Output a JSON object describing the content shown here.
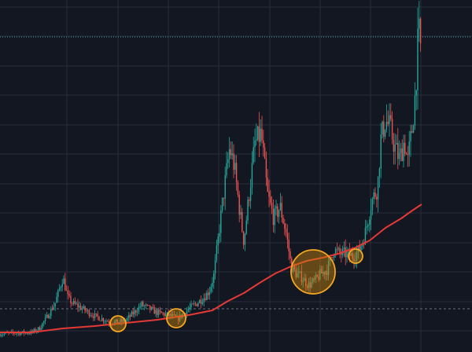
{
  "colors": {
    "background": "#131722",
    "grid": "#2a2e39",
    "candle_up": "#26a69a",
    "candle_down": "#ef5350",
    "moving_average": "#e53935",
    "highlight_fill": "#c8860a",
    "highlight_stroke": "#f5a623",
    "top_dotted": "#4db6c6",
    "bottom_dashed": "#6b7080"
  },
  "chart_data": {
    "type": "candlestick",
    "title": "",
    "xlabel": "",
    "ylabel": "",
    "xlim": [
      0,
      300
    ],
    "ylim": [
      0,
      448
    ],
    "grid": true,
    "legend": "none",
    "top_dotted_level": 401,
    "bottom_dashed_level": 55,
    "price_path": [
      [
        0,
        23
      ],
      [
        10,
        24
      ],
      [
        20,
        25
      ],
      [
        25,
        30
      ],
      [
        30,
        45
      ],
      [
        35,
        62
      ],
      [
        40,
        95
      ],
      [
        43,
        70
      ],
      [
        46,
        62
      ],
      [
        50,
        58
      ],
      [
        55,
        52
      ],
      [
        60,
        46
      ],
      [
        65,
        42
      ],
      [
        70,
        38
      ],
      [
        75,
        38
      ],
      [
        80,
        40
      ],
      [
        85,
        50
      ],
      [
        90,
        60
      ],
      [
        95,
        55
      ],
      [
        100,
        50
      ],
      [
        105,
        48
      ],
      [
        110,
        45
      ],
      [
        113,
        42
      ],
      [
        116,
        48
      ],
      [
        120,
        55
      ],
      [
        125,
        62
      ],
      [
        130,
        70
      ],
      [
        133,
        78
      ],
      [
        136,
        98
      ],
      [
        139,
        150
      ],
      [
        142,
        200
      ],
      [
        146,
        260
      ],
      [
        149,
        235
      ],
      [
        152,
        185
      ],
      [
        155,
        140
      ],
      [
        158,
        195
      ],
      [
        162,
        265
      ],
      [
        166,
        278
      ],
      [
        170,
        200
      ],
      [
        174,
        170
      ],
      [
        178,
        185
      ],
      [
        182,
        150
      ],
      [
        185,
        110
      ],
      [
        188,
        100
      ],
      [
        192,
        95
      ],
      [
        196,
        85
      ],
      [
        200,
        90
      ],
      [
        204,
        100
      ],
      [
        208,
        105
      ],
      [
        212,
        130
      ],
      [
        216,
        125
      ],
      [
        220,
        125
      ],
      [
        224,
        122
      ],
      [
        228,
        128
      ],
      [
        232,
        150
      ],
      [
        236,
        190
      ],
      [
        240,
        210
      ],
      [
        242,
        270
      ],
      [
        245,
        295
      ],
      [
        248,
        285
      ],
      [
        251,
        260
      ],
      [
        254,
        245
      ],
      [
        257,
        270
      ],
      [
        259,
        240
      ],
      [
        262,
        285
      ],
      [
        264,
        330
      ],
      [
        266,
        410
      ],
      [
        268,
        375
      ]
    ],
    "moving_average": [
      [
        0,
        25
      ],
      [
        20,
        25
      ],
      [
        40,
        30
      ],
      [
        60,
        33
      ],
      [
        80,
        37
      ],
      [
        100,
        41
      ],
      [
        120,
        47
      ],
      [
        135,
        53
      ],
      [
        145,
        65
      ],
      [
        155,
        75
      ],
      [
        165,
        88
      ],
      [
        175,
        100
      ],
      [
        185,
        109
      ],
      [
        195,
        116
      ],
      [
        205,
        120
      ],
      [
        215,
        125
      ],
      [
        225,
        132
      ],
      [
        235,
        142
      ],
      [
        245,
        158
      ],
      [
        255,
        170
      ],
      [
        262,
        180
      ],
      [
        268,
        188
      ]
    ],
    "highlights": [
      {
        "x": 75,
        "y": 36,
        "size": 10
      },
      {
        "x": 112,
        "y": 43,
        "size": 12
      },
      {
        "x": 199,
        "y": 102,
        "size": 28
      },
      {
        "x": 226,
        "y": 122,
        "size": 9
      }
    ]
  }
}
